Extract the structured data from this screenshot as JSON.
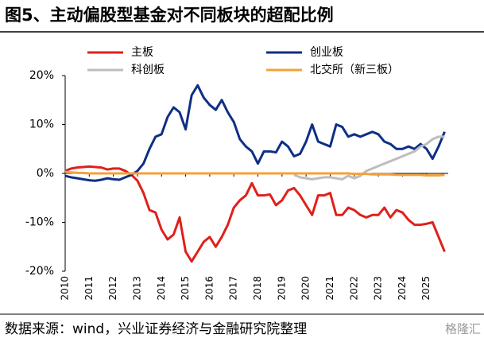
{
  "title": "图5、主动偏股型基金对不同板块的超配比例",
  "source": "数据来源：wind，兴业证券经济与金融研究院整理",
  "watermark": "格隆汇",
  "chart_data": {
    "type": "line",
    "x": [
      2010,
      2010.25,
      2010.5,
      2010.75,
      2011,
      2011.25,
      2011.5,
      2011.75,
      2012,
      2012.25,
      2012.5,
      2012.75,
      2013,
      2013.25,
      2013.5,
      2013.75,
      2014,
      2014.25,
      2014.5,
      2014.75,
      2015,
      2015.25,
      2015.5,
      2015.75,
      2016,
      2016.25,
      2016.5,
      2016.75,
      2017,
      2017.25,
      2017.5,
      2017.75,
      2018,
      2018.25,
      2018.5,
      2018.75,
      2019,
      2019.25,
      2019.5,
      2019.75,
      2020,
      2020.25,
      2020.5,
      2020.75,
      2021,
      2021.25,
      2021.5,
      2021.75,
      2022,
      2022.25,
      2022.5,
      2022.75,
      2023,
      2023.25,
      2023.5,
      2023.75,
      2024,
      2024.25,
      2024.5,
      2024.75,
      2025,
      2025.25,
      2025.5,
      2025.75
    ],
    "xlim": [
      2010,
      2025.9
    ],
    "xticks": [
      2010,
      2011,
      2012,
      2013,
      2014,
      2015,
      2016,
      2017,
      2018,
      2019,
      2020,
      2021,
      2022,
      2023,
      2024,
      2025
    ],
    "ylim": [
      -20,
      20
    ],
    "yticks": [
      {
        "value": 20,
        "label": "20%"
      },
      {
        "value": 10,
        "label": "10%"
      },
      {
        "value": 0,
        "label": "0%"
      },
      {
        "value": -10,
        "label": "-10%"
      },
      {
        "value": -20,
        "label": "-20%"
      }
    ],
    "series": [
      {
        "name": "主板",
        "color": "#e0201b",
        "values": [
          0.5,
          1,
          1.2,
          1.3,
          1.4,
          1.3,
          1.2,
          0.8,
          1,
          1,
          0.5,
          -0.3,
          -1.5,
          -4,
          -7.5,
          -8,
          -11.5,
          -13.5,
          -12.5,
          -9,
          -16,
          -18,
          -16,
          -14,
          -13,
          -15,
          -13,
          -10.5,
          -7,
          -5.5,
          -4.5,
          -2,
          -4.5,
          -4.5,
          -4.3,
          -6.5,
          -5.5,
          -3.5,
          -3,
          -4.5,
          -6.5,
          -8.5,
          -4.5,
          -4.5,
          -4,
          -8.5,
          -8.5,
          -7,
          -7.5,
          -8.5,
          -9,
          -8.5,
          -8.5,
          -7,
          -9,
          -7.5,
          -8,
          -9.5,
          -10.5,
          -10.5,
          -10.3,
          -10,
          -13,
          -16
        ]
      },
      {
        "name": "创业板",
        "color": "#0e2f85",
        "values": [
          -0.5,
          -0.8,
          -1,
          -1.2,
          -1.4,
          -1.5,
          -1.3,
          -1,
          -1.2,
          -1.3,
          -0.8,
          -0.3,
          0.5,
          2,
          5,
          7.5,
          8,
          11.5,
          13.5,
          12.5,
          9,
          16,
          18,
          15.5,
          14,
          13,
          15,
          12.5,
          10.5,
          7,
          5.5,
          4.5,
          2,
          4.5,
          4.5,
          4.3,
          6.5,
          5.5,
          3.5,
          4,
          6.5,
          10,
          6.5,
          6,
          5.5,
          10,
          9.5,
          7.5,
          8,
          7.5,
          8,
          8.5,
          8,
          6.5,
          6,
          5,
          5,
          5.5,
          5,
          6,
          5,
          3,
          5.5,
          8.5
        ]
      },
      {
        "name": "科创板",
        "color": "#bdbdbd",
        "values": [
          null,
          null,
          null,
          null,
          null,
          null,
          null,
          null,
          null,
          null,
          null,
          null,
          null,
          null,
          null,
          null,
          null,
          null,
          null,
          null,
          null,
          null,
          null,
          null,
          null,
          null,
          null,
          null,
          null,
          null,
          null,
          null,
          null,
          null,
          null,
          null,
          null,
          null,
          -0.3,
          -0.8,
          -1,
          -1.2,
          -1,
          -0.8,
          -0.8,
          -1,
          -1.2,
          -0.5,
          -1,
          -0.5,
          0.5,
          1,
          1.5,
          2,
          2.5,
          3,
          3.5,
          4,
          4.5,
          5.5,
          6,
          7,
          7.5,
          7.5
        ]
      },
      {
        "name": "北交所（新三板）",
        "color": "#f5a03c",
        "values": [
          0.3,
          0.2,
          0.1,
          0.1,
          0,
          0,
          0,
          0,
          0,
          0,
          0,
          0,
          0,
          0,
          0,
          0,
          0,
          0,
          0,
          0,
          0,
          0,
          0,
          0,
          0,
          0,
          0,
          0,
          0,
          0,
          0,
          0,
          0,
          0,
          0,
          0,
          0,
          0,
          0,
          0,
          0,
          0,
          0,
          0,
          0,
          0,
          0,
          0,
          -0.1,
          -0.1,
          -0.1,
          -0.2,
          -0.2,
          -0.2,
          -0.2,
          -0.3,
          -0.3,
          -0.3,
          -0.3,
          -0.3,
          -0.4,
          -0.4,
          -0.4,
          -0.3
        ]
      }
    ]
  }
}
